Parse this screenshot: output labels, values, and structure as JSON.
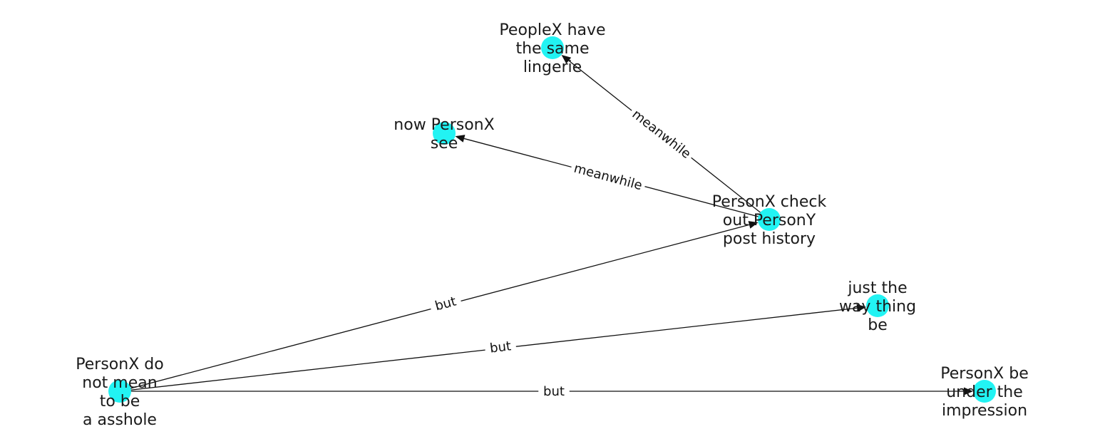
{
  "colors": {
    "node": "#22F3F3",
    "edge": "#111111",
    "text": "#1a1a1a"
  },
  "nodes": [
    {
      "id": "peoplex-same-lingerie",
      "lines": [
        "PeopleX have",
        "the same",
        "lingerie"
      ]
    },
    {
      "id": "now-personx-see",
      "lines": [
        "now PersonX",
        "see"
      ]
    },
    {
      "id": "personx-check-history",
      "lines": [
        "PersonX check",
        "out PersonY",
        "post history"
      ]
    },
    {
      "id": "just-the-way",
      "lines": [
        "just the",
        "way thing",
        "be"
      ]
    },
    {
      "id": "personx-not-mean",
      "lines": [
        "PersonX do",
        "not mean",
        "to be",
        "a asshole"
      ]
    },
    {
      "id": "personx-impression",
      "lines": [
        "PersonX be",
        "under the",
        "impression"
      ]
    }
  ],
  "edges": [
    {
      "from": "personx-check-history",
      "to": "peoplex-same-lingerie",
      "label": "meanwhile"
    },
    {
      "from": "personx-check-history",
      "to": "now-personx-see",
      "label": "meanwhile"
    },
    {
      "from": "personx-not-mean",
      "to": "personx-check-history",
      "label": "but"
    },
    {
      "from": "personx-not-mean",
      "to": "just-the-way",
      "label": "but"
    },
    {
      "from": "personx-not-mean",
      "to": "personx-impression",
      "label": "but"
    }
  ]
}
